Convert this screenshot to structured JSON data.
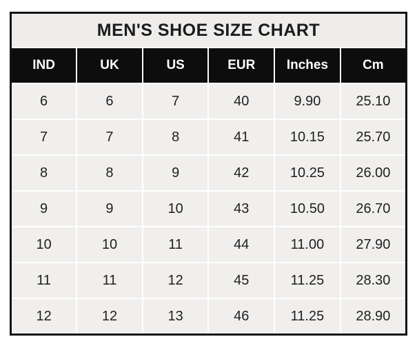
{
  "chart_data": {
    "type": "table",
    "title": "MEN'S SHOE SIZE CHART",
    "columns": [
      "IND",
      "UK",
      "US",
      "EUR",
      "Inches",
      "Cm"
    ],
    "rows": [
      [
        "6",
        "6",
        "7",
        "40",
        "9.90",
        "25.10"
      ],
      [
        "7",
        "7",
        "8",
        "41",
        "10.15",
        "25.70"
      ],
      [
        "8",
        "8",
        "9",
        "42",
        "10.25",
        "26.00"
      ],
      [
        "9",
        "9",
        "10",
        "43",
        "10.50",
        "26.70"
      ],
      [
        "10",
        "10",
        "11",
        "44",
        "11.00",
        "27.90"
      ],
      [
        "11",
        "11",
        "12",
        "45",
        "11.25",
        "28.30"
      ],
      [
        "12",
        "12",
        "13",
        "46",
        "11.25",
        "28.90"
      ]
    ],
    "layout": {
      "legend": "none",
      "grid": "white-gridlines-on-gray-cells"
    }
  },
  "colors": {
    "outer_border": "#131313",
    "title_background": "#eeedeb",
    "header_background": "#0d0d0d",
    "header_text": "#fdfdfd",
    "cell_background": "#f0efed",
    "cell_text": "#1f1f1f",
    "gridline": "#ffffff",
    "page_background": "#ffffff"
  }
}
